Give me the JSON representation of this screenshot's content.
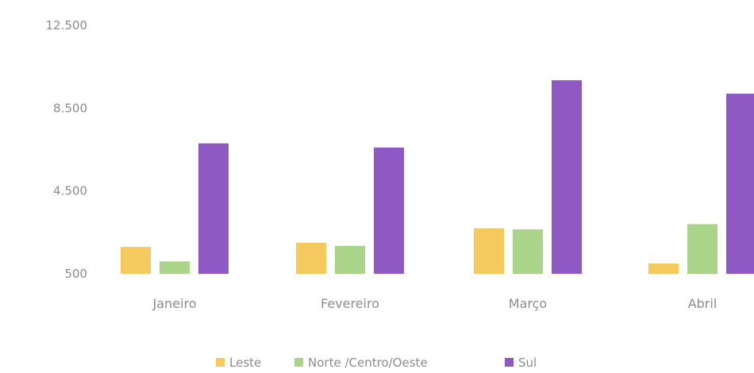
{
  "chart_data": {
    "type": "bar",
    "title": "",
    "xlabel": "",
    "ylabel": "",
    "categories": [
      "Janeiro",
      "Fevereiro",
      "Março",
      "Abril"
    ],
    "series": [
      {
        "name": "Leste",
        "values": [
          1800,
          2000,
          2700,
          1000
        ]
      },
      {
        "name": "Norte /Centro/Oeste",
        "values": [
          1100,
          1850,
          2650,
          2900
        ]
      },
      {
        "name": "Sul",
        "values": [
          6800,
          6600,
          9850,
          9200
        ]
      }
    ],
    "colors": [
      "#f4c95d",
      "#a9d48a",
      "#8e59c2"
    ],
    "ylim": [
      500,
      12500
    ],
    "y_ticks": [
      "500",
      "4.500",
      "8.500",
      "12.500"
    ],
    "y_tick_values": [
      500,
      4500,
      8500,
      12500
    ],
    "grid": false,
    "legend_position": "bottom"
  }
}
